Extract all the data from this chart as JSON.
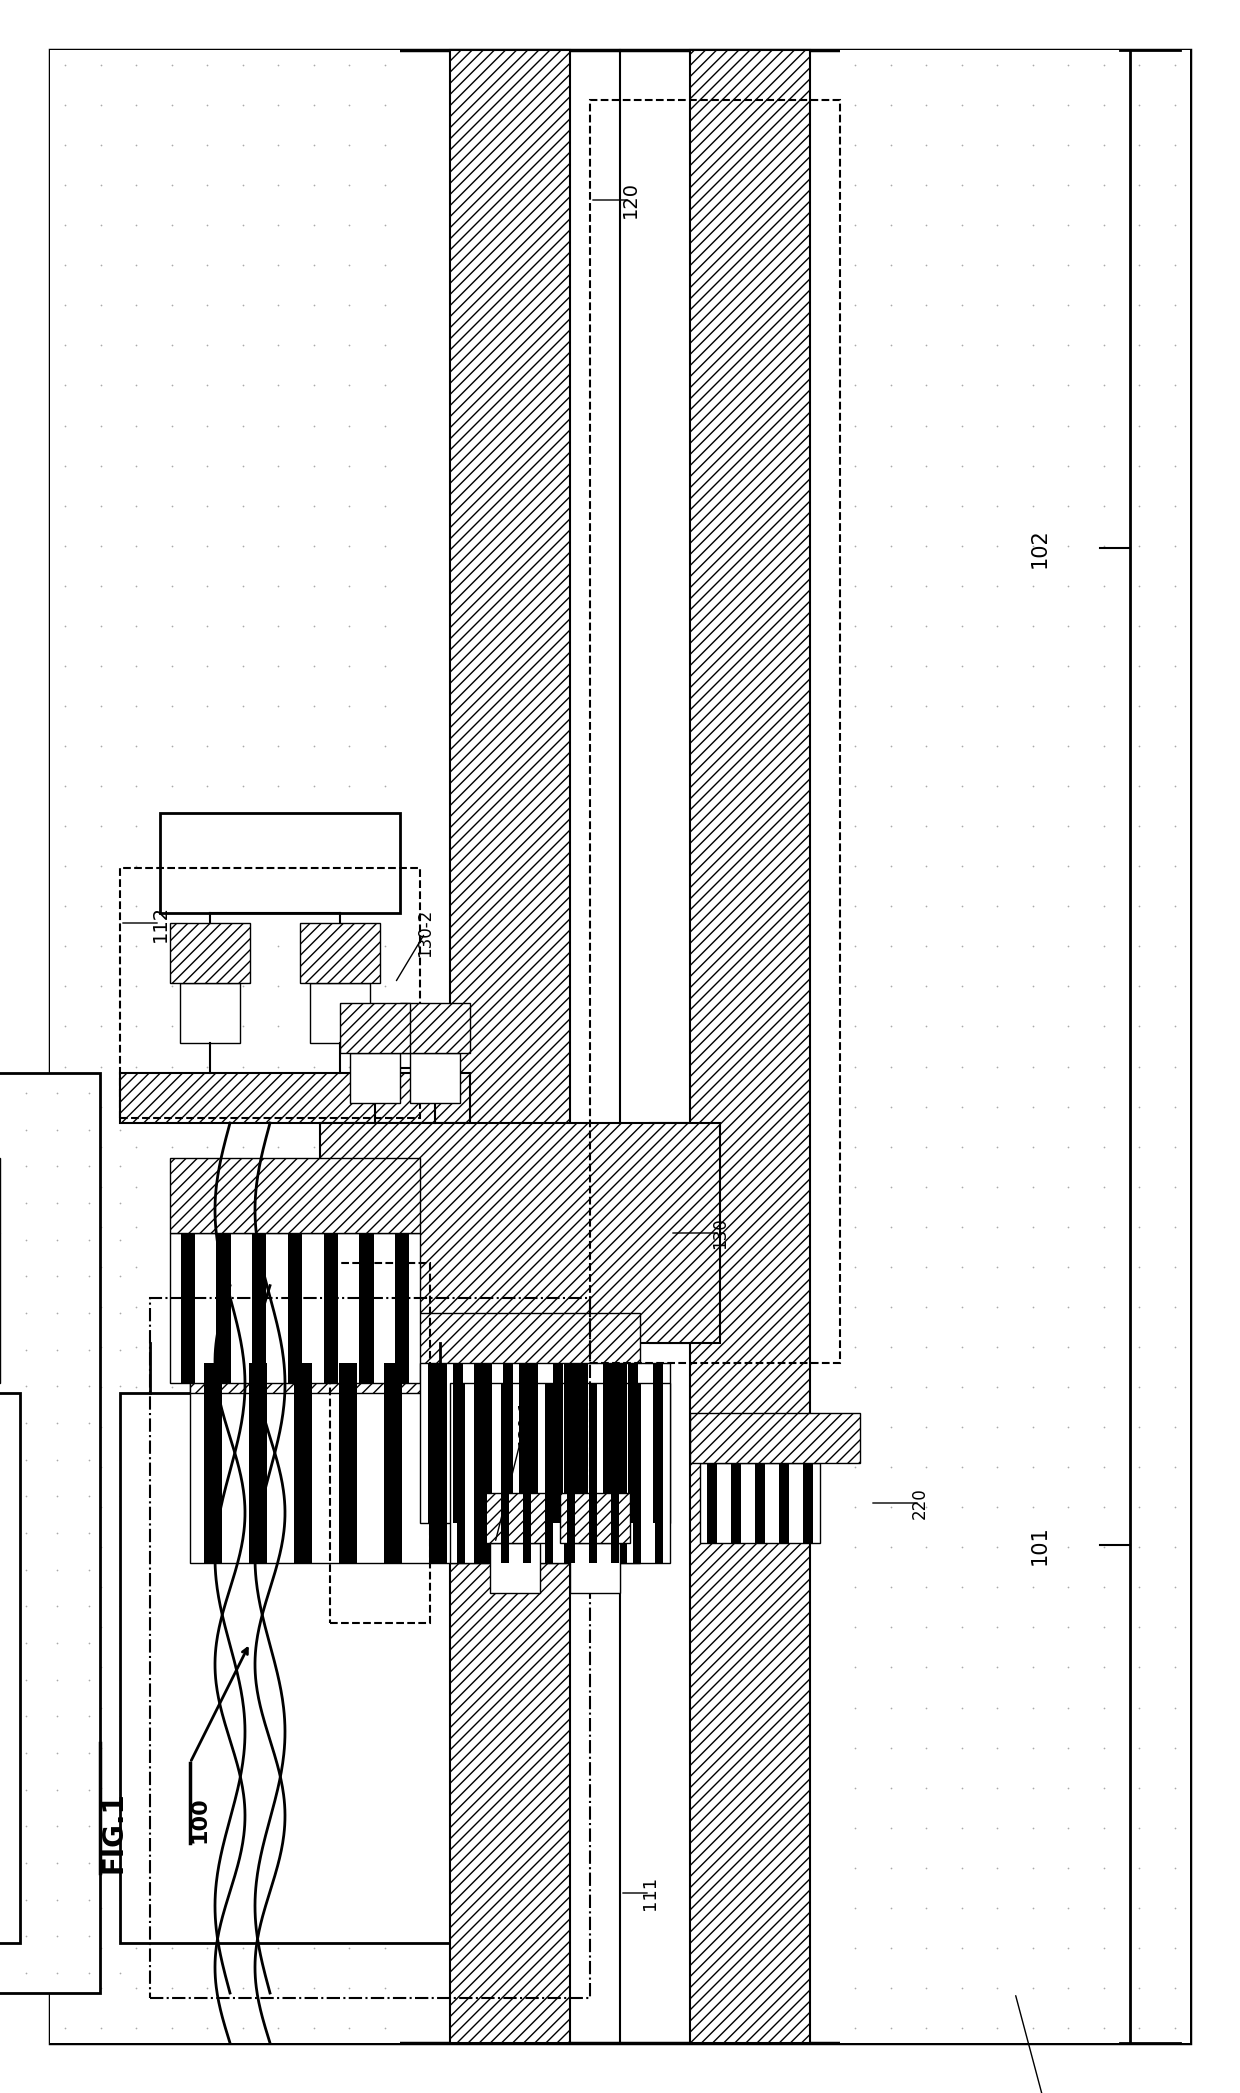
{
  "background": "#ffffff",
  "fig_w": 12.4,
  "fig_h": 20.93,
  "dpi": 100
}
